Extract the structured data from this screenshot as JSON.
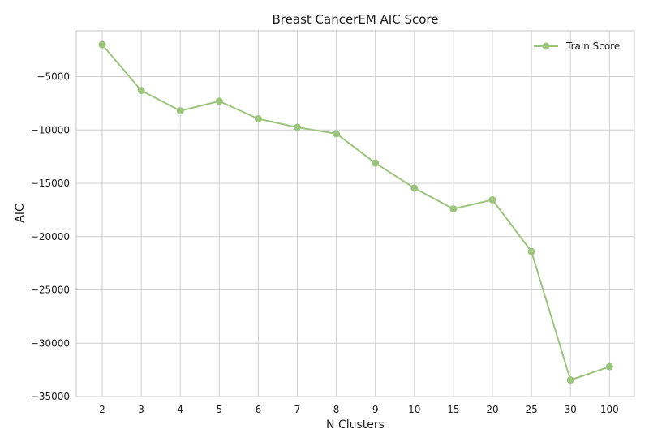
{
  "chart_data": {
    "type": "line",
    "title": "Breast CancerEM AIC Score",
    "xlabel": "N Clusters",
    "ylabel": "AIC",
    "categories": [
      "2",
      "3",
      "4",
      "5",
      "6",
      "7",
      "8",
      "9",
      "10",
      "15",
      "20",
      "25",
      "30",
      "100"
    ],
    "series": [
      {
        "name": "Train Score",
        "color": "#9bc47c",
        "values": [
          -2000,
          -6300,
          -8200,
          -7300,
          -8950,
          -9750,
          -10350,
          -13100,
          -15450,
          -17400,
          -16550,
          -21400,
          -33450,
          -32200
        ]
      }
    ],
    "ylim": [
      -35000,
      -700
    ],
    "yticks": [
      -5000,
      -10000,
      -15000,
      -20000,
      -25000,
      -30000,
      -35000
    ],
    "ytick_labels": [
      "−5000",
      "−10000",
      "−15000",
      "−20000",
      "−25000",
      "−30000",
      "−35000"
    ],
    "grid": true,
    "legend_position": "top-right"
  }
}
